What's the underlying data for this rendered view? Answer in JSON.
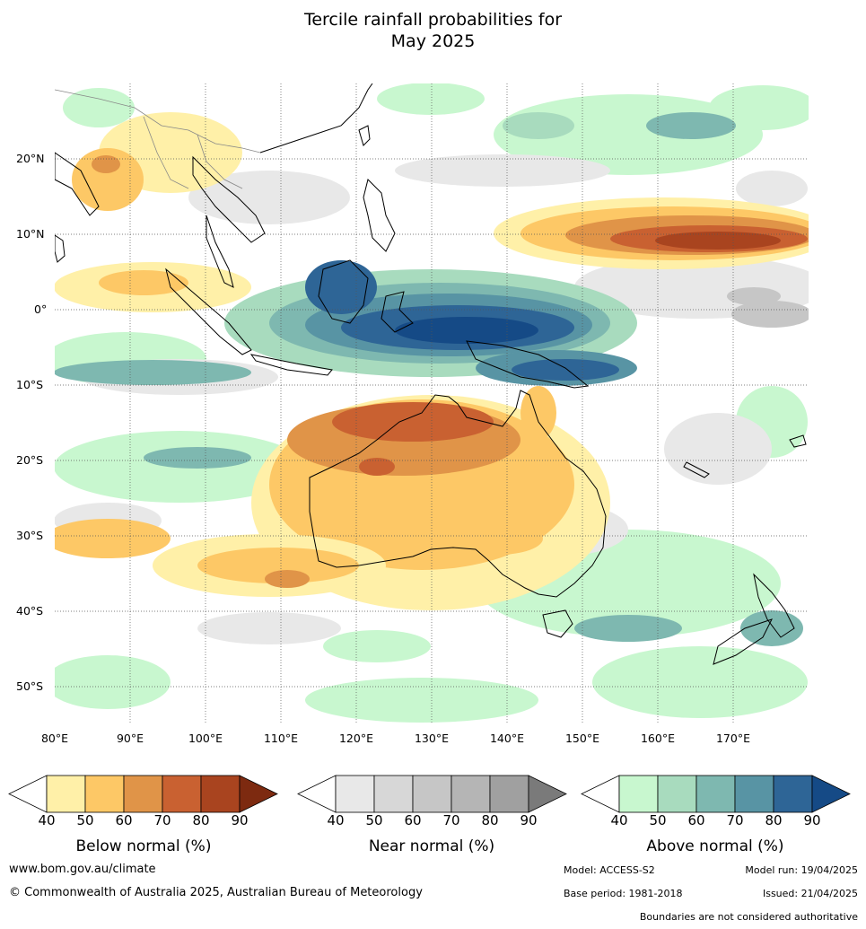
{
  "title_line1": "Tercile rainfall probabilities for",
  "title_line2": "May 2025",
  "map": {
    "lat_labels": [
      "20°N",
      "10°N",
      "0°",
      "10°S",
      "20°S",
      "30°S",
      "40°S",
      "50°S"
    ],
    "lon_labels": [
      "80°E",
      "90°E",
      "100°E",
      "110°E",
      "120°E",
      "130°E",
      "140°E",
      "150°E",
      "160°E",
      "170°E"
    ],
    "lon_range": [
      80,
      180
    ],
    "lat_range": [
      -55,
      30
    ]
  },
  "legend": {
    "ticks": [
      "40",
      "50",
      "60",
      "70",
      "80",
      "90"
    ],
    "below": {
      "caption": "Below normal (%)",
      "colors": [
        "#fff0a8",
        "#fdc866",
        "#e09448",
        "#c96131",
        "#a9441f",
        "#7d2a10"
      ]
    },
    "near": {
      "caption": "Near normal (%)",
      "colors": [
        "#e8e8e8",
        "#d7d7d7",
        "#c6c6c6",
        "#b5b5b5",
        "#a0a0a0",
        "#7a7a7a"
      ]
    },
    "above": {
      "caption": "Above normal (%)",
      "colors": [
        "#c8f7cf",
        "#a8dbbe",
        "#7eb8b0",
        "#5894a4",
        "#2e6596",
        "#154a86"
      ]
    }
  },
  "footer": {
    "website": "www.bom.gov.au/climate",
    "copyright": "© Commonwealth of Australia 2025, Australian Bureau of Meteorology",
    "model": "Model: ACCESS-S2",
    "model_run": "Model run: 19/04/2025",
    "base_period": "Base period: 1981-2018",
    "issued": "Issued: 21/04/2025",
    "disclaimer": "Boundaries are not considered authoritative"
  }
}
